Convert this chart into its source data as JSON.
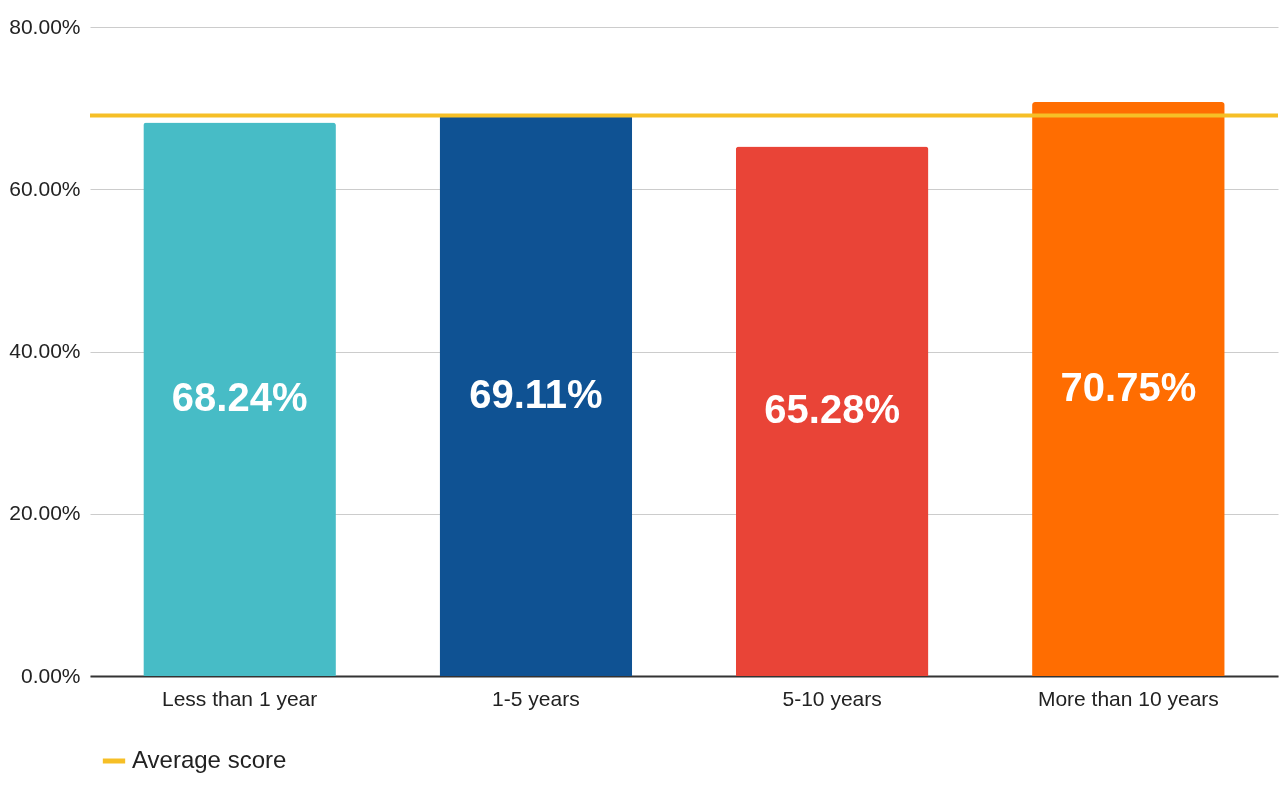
{
  "chart_data": {
    "type": "bar",
    "categories": [
      "Less than 1 year",
      "1-5 years",
      "5-10 years",
      "More than 10 years"
    ],
    "values": [
      68.24,
      69.11,
      65.28,
      70.75
    ],
    "colors": [
      "#47bcc6",
      "#0f5293",
      "#e94437",
      "#ff6d01"
    ],
    "value_labels": [
      "68.24%",
      "69.11%",
      "65.28%",
      "70.75%"
    ],
    "ylim": [
      0,
      80
    ],
    "yticks": [
      {
        "value": 0,
        "label": "0.00%"
      },
      {
        "value": 20,
        "label": "20.00%"
      },
      {
        "value": 40,
        "label": "40.00%"
      },
      {
        "value": 60,
        "label": "60.00%"
      },
      {
        "value": 80,
        "label": "80.00%"
      }
    ],
    "grid": "y",
    "legend": "bottom",
    "ref_lines": [
      {
        "axis": "y",
        "value": 69.1,
        "label": "Average score",
        "color": "#f6bf26"
      }
    ]
  }
}
